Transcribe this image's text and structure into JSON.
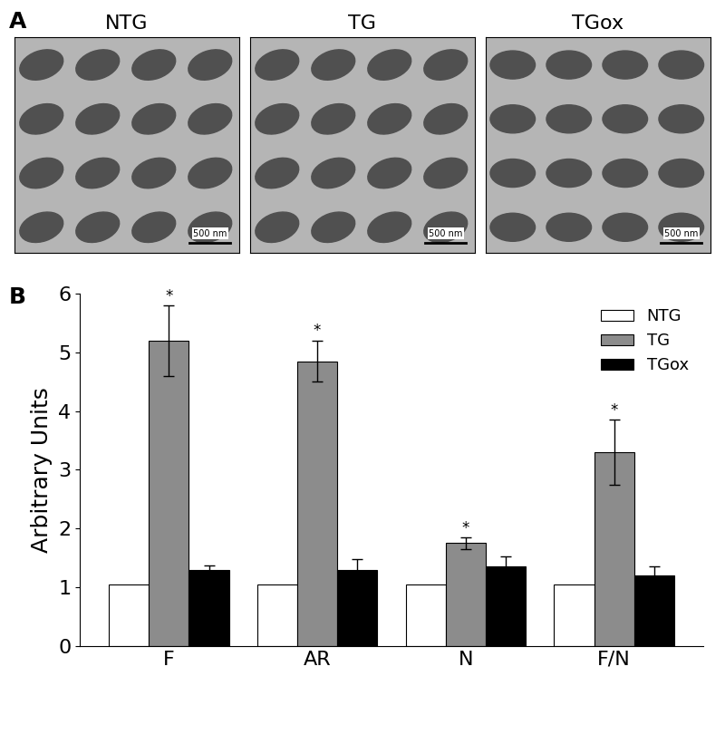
{
  "panel_labels": [
    "A",
    "B"
  ],
  "micrographs": [
    {
      "title": "NTG",
      "scale_bar": "500 nm"
    },
    {
      "title": "TG",
      "scale_bar": "500 nm"
    },
    {
      "title": "TGox",
      "scale_bar": "500 nm"
    }
  ],
  "chart_data": {
    "type": "bar",
    "y_label": "Arbitrary Units",
    "categories": [
      "F",
      "AR",
      "N",
      "F/N"
    ],
    "series": [
      {
        "name": "NTG",
        "color": "#ffffff",
        "values": [
          1.05,
          1.05,
          1.05,
          1.05
        ]
      },
      {
        "name": "TG",
        "color": "#8c8c8c",
        "values": [
          5.2,
          4.85,
          1.75,
          3.3
        ],
        "errors": [
          0.6,
          0.35,
          0.1,
          0.55
        ],
        "significance": [
          "*",
          "*",
          "*",
          "*"
        ]
      },
      {
        "name": "TGox",
        "color": "#000000",
        "values": [
          1.3,
          1.3,
          1.35,
          1.2
        ],
        "errors": [
          0.07,
          0.18,
          0.18,
          0.15
        ]
      }
    ],
    "ylim": [
      0,
      6
    ],
    "yticks": [
      0,
      1,
      2,
      3,
      4,
      5,
      6
    ],
    "legend": "upper right"
  }
}
